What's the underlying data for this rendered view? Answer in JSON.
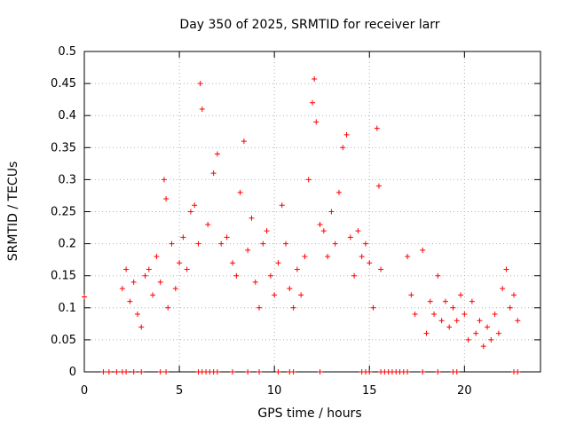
{
  "chart_data": {
    "type": "scatter",
    "title": "Day 350 of 2025, SRMTID for receiver larr",
    "xlabel": "GPS time / hours",
    "ylabel": "SRMTID / TECUs",
    "xlim": [
      0,
      24
    ],
    "ylim": [
      0,
      0.5
    ],
    "xticks": [
      0,
      5,
      10,
      15,
      20
    ],
    "yticks": [
      0,
      0.05,
      0.1,
      0.15,
      0.2,
      0.25,
      0.3,
      0.35,
      0.4,
      0.45,
      0.5
    ],
    "xtick_labels": [
      "0",
      "5",
      "10",
      "15",
      "20"
    ],
    "ytick_labels": [
      "0",
      "0.05",
      "0.1",
      "0.15",
      "0.2",
      "0.25",
      "0.3",
      "0.35",
      "0.4",
      "0.45",
      "0.5"
    ],
    "grid": true,
    "marker": "+",
    "color": "#ff0000",
    "series": [
      {
        "name": "",
        "points": [
          [
            0.0,
            0.117
          ],
          [
            2.0,
            0.13
          ],
          [
            2.2,
            0.16
          ],
          [
            2.4,
            0.11
          ],
          [
            2.6,
            0.14
          ],
          [
            2.8,
            0.09
          ],
          [
            3.0,
            0.07
          ],
          [
            3.2,
            0.15
          ],
          [
            3.4,
            0.16
          ],
          [
            3.6,
            0.12
          ],
          [
            3.8,
            0.18
          ],
          [
            4.0,
            0.14
          ],
          [
            4.2,
            0.3
          ],
          [
            4.3,
            0.27
          ],
          [
            4.4,
            0.1
          ],
          [
            4.6,
            0.2
          ],
          [
            4.8,
            0.13
          ],
          [
            5.0,
            0.17
          ],
          [
            5.2,
            0.21
          ],
          [
            5.4,
            0.16
          ],
          [
            5.6,
            0.25
          ],
          [
            5.8,
            0.26
          ],
          [
            6.0,
            0.2
          ],
          [
            6.1,
            0.45
          ],
          [
            6.2,
            0.41
          ],
          [
            6.5,
            0.23
          ],
          [
            6.8,
            0.31
          ],
          [
            7.0,
            0.34
          ],
          [
            7.2,
            0.2
          ],
          [
            7.5,
            0.21
          ],
          [
            7.8,
            0.17
          ],
          [
            8.0,
            0.15
          ],
          [
            8.2,
            0.28
          ],
          [
            8.4,
            0.36
          ],
          [
            8.6,
            0.19
          ],
          [
            8.8,
            0.24
          ],
          [
            9.0,
            0.14
          ],
          [
            9.2,
            0.1
          ],
          [
            9.4,
            0.2
          ],
          [
            9.6,
            0.22
          ],
          [
            9.8,
            0.15
          ],
          [
            10.0,
            0.12
          ],
          [
            10.2,
            0.17
          ],
          [
            10.4,
            0.26
          ],
          [
            10.6,
            0.2
          ],
          [
            10.8,
            0.13
          ],
          [
            11.0,
            0.1
          ],
          [
            11.2,
            0.16
          ],
          [
            11.4,
            0.12
          ],
          [
            11.6,
            0.18
          ],
          [
            11.8,
            0.3
          ],
          [
            12.0,
            0.42
          ],
          [
            12.1,
            0.457
          ],
          [
            12.2,
            0.39
          ],
          [
            12.4,
            0.23
          ],
          [
            12.6,
            0.22
          ],
          [
            12.8,
            0.18
          ],
          [
            13.0,
            0.25
          ],
          [
            13.2,
            0.2
          ],
          [
            13.4,
            0.28
          ],
          [
            13.6,
            0.35
          ],
          [
            13.8,
            0.37
          ],
          [
            14.0,
            0.21
          ],
          [
            14.2,
            0.15
          ],
          [
            14.4,
            0.22
          ],
          [
            14.6,
            0.18
          ],
          [
            14.8,
            0.2
          ],
          [
            15.0,
            0.17
          ],
          [
            15.2,
            0.1
          ],
          [
            15.4,
            0.38
          ],
          [
            15.5,
            0.29
          ],
          [
            15.6,
            0.16
          ],
          [
            17.0,
            0.18
          ],
          [
            17.2,
            0.12
          ],
          [
            17.4,
            0.09
          ],
          [
            17.8,
            0.19
          ],
          [
            18.0,
            0.06
          ],
          [
            18.2,
            0.11
          ],
          [
            18.4,
            0.09
          ],
          [
            18.6,
            0.15
          ],
          [
            18.8,
            0.08
          ],
          [
            19.0,
            0.11
          ],
          [
            19.2,
            0.07
          ],
          [
            19.4,
            0.1
          ],
          [
            19.6,
            0.08
          ],
          [
            19.8,
            0.12
          ],
          [
            20.0,
            0.09
          ],
          [
            20.2,
            0.05
          ],
          [
            20.4,
            0.11
          ],
          [
            20.6,
            0.06
          ],
          [
            20.8,
            0.08
          ],
          [
            21.0,
            0.04
          ],
          [
            21.2,
            0.07
          ],
          [
            21.4,
            0.05
          ],
          [
            21.6,
            0.09
          ],
          [
            21.8,
            0.06
          ],
          [
            22.0,
            0.13
          ],
          [
            22.2,
            0.16
          ],
          [
            22.4,
            0.1
          ],
          [
            22.6,
            0.12
          ],
          [
            22.8,
            0.08
          ]
        ]
      }
    ],
    "zero_markers": [
      1.0,
      1.3,
      1.7,
      2.0,
      2.2,
      2.6,
      3.0,
      4.0,
      4.3,
      6.0,
      6.2,
      6.4,
      6.6,
      6.8,
      7.0,
      7.8,
      8.6,
      9.2,
      10.2,
      10.8,
      11.0,
      12.4,
      14.6,
      14.8,
      15.0,
      15.6,
      15.8,
      16.0,
      16.2,
      16.4,
      16.6,
      16.8,
      17.0,
      17.8,
      18.6,
      19.4,
      19.6,
      22.6,
      22.8
    ]
  }
}
